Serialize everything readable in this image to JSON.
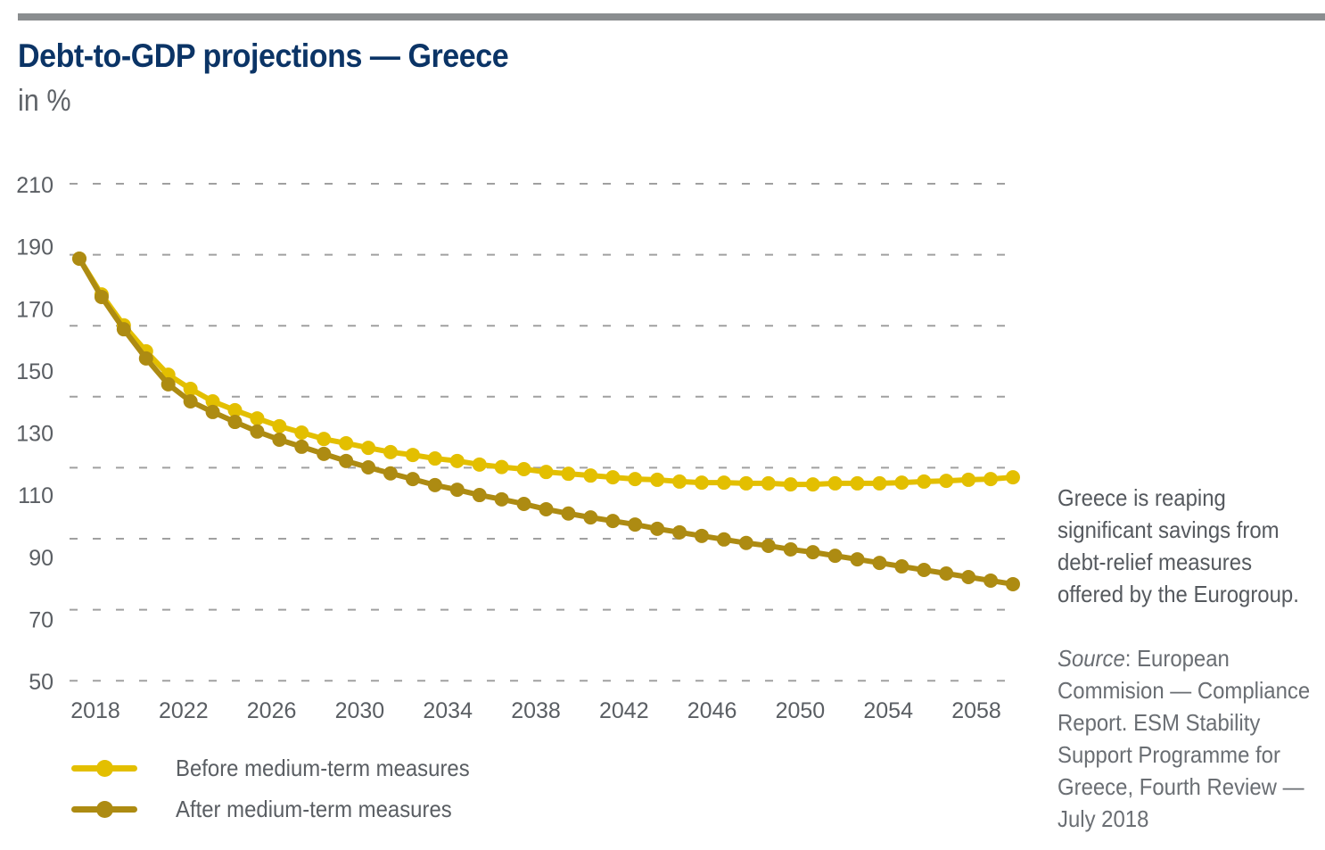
{
  "header": {
    "title": "Debt-to-GDP projections — Greece",
    "subtitle": "in %"
  },
  "colors": {
    "before": "#e3bf00",
    "after": "#ad8b12",
    "title": "#0b3466",
    "grid": "#a0a0a0",
    "rule": "#8a8d8f"
  },
  "side_note": "Greece is reaping significant savings from debt-relief measures offered by the Eurogroup.",
  "source": {
    "label": "Source",
    "text": ": European Commision — Compliance Report. ESM Stability Support Programme for Greece, Fourth Review — July 2018"
  },
  "chart_data": {
    "type": "line",
    "title": "Debt-to-GDP projections — Greece",
    "subtitle": "in %",
    "xlabel": "",
    "ylabel": "in %",
    "ylim": [
      70,
      210
    ],
    "xlim": [
      2018,
      2060
    ],
    "grid": true,
    "legend_position": "bottom-left",
    "y_tick_labels": [
      "210",
      "190",
      "170",
      "150",
      "130",
      "110",
      "90",
      "70",
      "50"
    ],
    "gridline_values": [
      210,
      190,
      170,
      150,
      130,
      110,
      90,
      70
    ],
    "x_tick_labels": [
      "2018",
      "2022",
      "2026",
      "2030",
      "2034",
      "2038",
      "2042",
      "2046",
      "2050",
      "2054",
      "2058"
    ],
    "x": [
      2018,
      2019,
      2020,
      2021,
      2022,
      2023,
      2024,
      2025,
      2026,
      2027,
      2028,
      2029,
      2030,
      2031,
      2032,
      2033,
      2034,
      2035,
      2036,
      2037,
      2038,
      2039,
      2040,
      2041,
      2042,
      2043,
      2044,
      2045,
      2046,
      2047,
      2048,
      2049,
      2050,
      2051,
      2052,
      2053,
      2054,
      2055,
      2056,
      2057,
      2058,
      2059,
      2060
    ],
    "series": [
      {
        "name": "Before medium-term measures",
        "color": "#e3bf00",
        "values": [
          188.9,
          178.8,
          170.1,
          162.8,
          156.2,
          152.2,
          148.7,
          146.2,
          143.9,
          141.7,
          139.9,
          138.1,
          136.9,
          135.6,
          134.4,
          133.6,
          132.6,
          131.9,
          130.9,
          130.2,
          129.6,
          128.8,
          128.3,
          127.8,
          127.3,
          126.8,
          126.6,
          126.1,
          125.8,
          125.8,
          125.6,
          125.6,
          125.3,
          125.3,
          125.6,
          125.6,
          125.6,
          125.8,
          126.1,
          126.3,
          126.6,
          126.8,
          127.3
        ]
      },
      {
        "name": "After medium-term measures",
        "color": "#ad8b12",
        "values": [
          188.9,
          178.1,
          169.0,
          160.8,
          153.5,
          148.7,
          145.7,
          142.9,
          140.2,
          137.9,
          135.9,
          133.9,
          131.9,
          130.1,
          128.4,
          126.8,
          125.1,
          123.8,
          122.3,
          121.1,
          119.8,
          118.3,
          117.1,
          116.0,
          115.0,
          114.0,
          112.8,
          111.8,
          110.8,
          109.8,
          108.8,
          108.0,
          107.0,
          106.2,
          105.2,
          104.2,
          103.2,
          102.2,
          101.2,
          100.2,
          99.2,
          98.2,
          97.2
        ]
      }
    ]
  }
}
